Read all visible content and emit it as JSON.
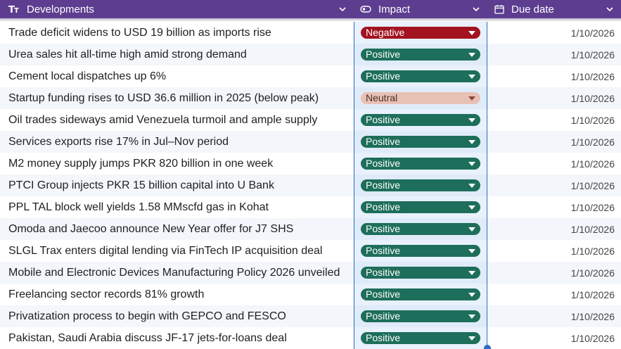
{
  "header": {
    "columns": [
      {
        "label": "Developments",
        "icon": "text-type-icon"
      },
      {
        "label": "Impact",
        "icon": "toggle-icon"
      },
      {
        "label": "Due date",
        "icon": "calendar-icon"
      }
    ]
  },
  "colors": {
    "header_bg": "#5c3d8f",
    "positive_bg": "#1d6e5a",
    "negative_bg": "#a3121f",
    "neutral_bg": "#e8c1b5",
    "selection_border": "#2b6cc4"
  },
  "rows": [
    {
      "development": "Trade deficit widens to USD 19 billion as imports rise",
      "impact": "Negative",
      "due_date": "1/10/2026"
    },
    {
      "development": "Urea sales hit all-time high amid strong demand",
      "impact": "Positive",
      "due_date": "1/10/2026"
    },
    {
      "development": "Cement local dispatches up 6%",
      "impact": "Positive",
      "due_date": "1/10/2026"
    },
    {
      "development": "Startup funding rises to USD 36.6 million in 2025 (below peak)",
      "impact": "Neutral",
      "due_date": "1/10/2026"
    },
    {
      "development": "Oil trades sideways amid Venezuela turmoil and ample supply",
      "impact": "Positive",
      "due_date": "1/10/2026"
    },
    {
      "development": "Services exports rise 17% in Jul–Nov period",
      "impact": "Positive",
      "due_date": "1/10/2026"
    },
    {
      "development": "M2 money supply jumps PKR 820 billion in one week",
      "impact": "Positive",
      "due_date": "1/10/2026"
    },
    {
      "development": "PTCI Group injects PKR 15 billion capital into U Bank",
      "impact": "Positive",
      "due_date": "1/10/2026"
    },
    {
      "development": "PPL TAL block well yields 1.58 MMscfd gas in Kohat",
      "impact": "Positive",
      "due_date": "1/10/2026"
    },
    {
      "development": "Omoda and Jaecoo announce New Year offer for J7 SHS",
      "impact": "Positive",
      "due_date": "1/10/2026"
    },
    {
      "development": "SLGL Trax enters digital lending via FinTech IP acquisition deal",
      "impact": "Positive",
      "due_date": "1/10/2026"
    },
    {
      "development": "Mobile and Electronic Devices Manufacturing Policy 2026 unveiled",
      "impact": "Positive",
      "due_date": "1/10/2026"
    },
    {
      "development": "Freelancing sector records 81% growth",
      "impact": "Positive",
      "due_date": "1/10/2026"
    },
    {
      "development": "Privatization process to begin with GEPCO and FESCO",
      "impact": "Positive",
      "due_date": "1/10/2026"
    },
    {
      "development": "Pakistan, Saudi Arabia discuss JF-17 jets-for-loans deal",
      "impact": "Positive",
      "due_date": "1/10/2026"
    }
  ]
}
